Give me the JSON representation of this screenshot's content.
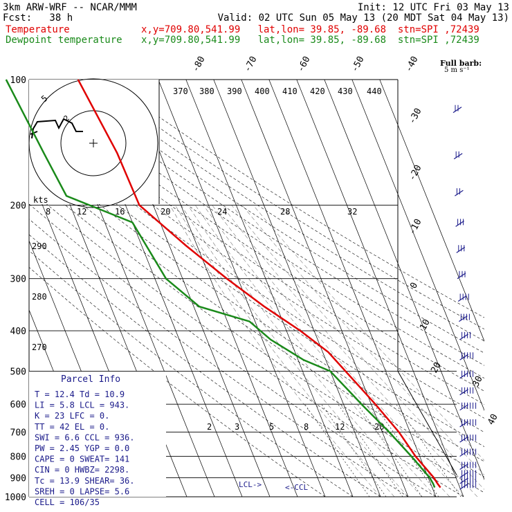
{
  "header": {
    "line1_left": "3km ARW-WRF -- NCAR/MMM",
    "line1_right": "Init: 12 UTC Fri 03 May 13",
    "line2_left": "Fcst:   38 h",
    "line2_right": "Valid: 02 UTC Sun 05 May 13 (20 MDT Sat 04 May 13)",
    "line3_left": "Temperature",
    "line3_right": "x,y=709.80,541.99   lat,lon= 39.85, -89.68  stn=SPI ,72439",
    "line4_left": "Dewpoint temperature",
    "line4_right": "x,y=709.80,541.99   lat,lon= 39.85, -89.68  stn=SPI ,72439"
  },
  "colors": {
    "temperature": "#e00000",
    "dewpoint": "#1a8a1a",
    "wind": "#1a1a8a",
    "axes": "#000000"
  },
  "wind_legend": {
    "title": "Full barb:",
    "units": "5 m s⁻¹"
  },
  "hodograph": {
    "units_label": "kts",
    "ring_labels": [
      "5",
      "2"
    ],
    "speed_ticks": [
      "8",
      "12",
      "16",
      "20",
      "24",
      "28",
      "32"
    ]
  },
  "theta_labels": [
    "370",
    "380",
    "390",
    "400",
    "410",
    "420",
    "430",
    "440"
  ],
  "theta_left_labels": [
    "290",
    "280",
    "270"
  ],
  "mixing_ratio_labels": [
    "2",
    "3",
    "5",
    "8",
    "12",
    "20"
  ],
  "lcl_labels": {
    "lcl": "LCL->",
    "ccl": "<-CCL"
  },
  "parcel_info": {
    "title": "Parcel Info",
    "rows": [
      "T   =   12.4  Td  =  10.9",
      "LI  =    5.8  LCL =  943.",
      "K   =     23  LFC =    0.",
      "TT  =     42  EL  =    0.",
      "SWI =    6.6  CCL =  936.",
      "PW  =   2.45  YGP =   0.0",
      "CAPE =     0  SWEAT=  141",
      "CIN  =     0  HWBZ= 2298.",
      "Tc  =   13.9  SHEAR=  36.",
      "SREH =     0  LAPSE=  5.6",
      "CELL = 106/35"
    ]
  },
  "chart_data": {
    "type": "line",
    "title": "",
    "xlabel": "",
    "ylabel": "",
    "y_scale": "log",
    "pressure_levels": [
      100,
      200,
      300,
      400,
      500,
      600,
      700,
      800,
      900,
      1000
    ],
    "pressure_labels": [
      "100",
      "200",
      "300",
      "400",
      "500",
      "600",
      "700",
      "800",
      "900",
      "1000"
    ],
    "isotherm_labels_top": [
      "-80",
      "-70",
      "-60",
      "-50",
      "-40"
    ],
    "isotherm_labels_right": [
      "-30",
      "-20",
      "-10",
      "0",
      "10",
      "20",
      "30",
      "40"
    ],
    "series": [
      {
        "name": "Temperature",
        "pressure": [
          100,
          150,
          200,
          250,
          300,
          350,
          400,
          450,
          500,
          600,
          700,
          800,
          900,
          930,
          950
        ],
        "temp_c": [
          -59.0,
          -55.5,
          -55.0,
          -44.0,
          -34.0,
          -24.5,
          -15.0,
          -8.0,
          -4.5,
          1.5,
          6.0,
          8.5,
          12.0,
          12.5,
          13.0
        ]
      },
      {
        "name": "Dewpoint temperature",
        "pressure": [
          100,
          150,
          190,
          220,
          300,
          350,
          380,
          420,
          470,
          500,
          600,
          700,
          800,
          900,
          930,
          950
        ],
        "dewpoint_c": [
          -85.0,
          -82.0,
          -80.0,
          -60.0,
          -56.0,
          -48.0,
          -32.0,
          -27.0,
          -18.0,
          -10.0,
          -3.5,
          2.5,
          7.0,
          10.5,
          10.9,
          10.9
        ]
      }
    ],
    "wind_barbs_pressure": [
      120,
      155,
      190,
      225,
      260,
      300,
      340,
      380,
      420,
      470,
      520,
      570,
      620,
      680,
      740,
      800,
      860,
      900,
      930,
      960
    ]
  }
}
